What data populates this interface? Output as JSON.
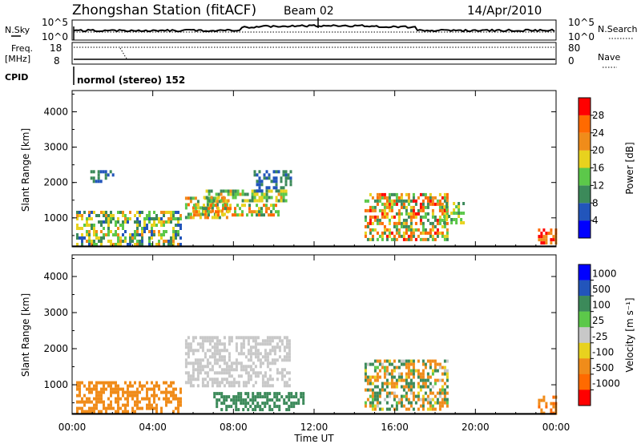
{
  "header": {
    "title": "Zhongshan Station (fitACF)",
    "beam": "Beam 02",
    "date": "14/Apr/2010"
  },
  "strip_nsky": {
    "label": "N.Sky",
    "right_label": "N.Search",
    "ticks_left": [
      "10^5",
      "10^0"
    ],
    "ticks_right": [
      "10^5",
      "10^0"
    ]
  },
  "strip_freq": {
    "label_line1": "Freq.",
    "label_line2": "[MHz]",
    "right_label": "Nave",
    "ticks_left": [
      "18",
      "8"
    ],
    "ticks_right": [
      "80",
      "0"
    ]
  },
  "strip_cpid": {
    "label": "CPID",
    "text": "normol (stereo) 152"
  },
  "panels": {
    "y_axis_label": "Slant Range [km]",
    "y_ticks": [
      "1000",
      "2000",
      "3000",
      "4000"
    ],
    "x_axis_label": "Time UT",
    "x_ticks": [
      "00:00",
      "04:00",
      "08:00",
      "12:00",
      "16:00",
      "20:00",
      "00:00"
    ]
  },
  "power_colorbar": {
    "label": "Power [dB]",
    "ticks": [
      "4",
      "8",
      "12",
      "16",
      "20",
      "24",
      "28"
    ],
    "colors": [
      "#0000ff",
      "#2255bb",
      "#3c8a5a",
      "#5cc84a",
      "#e8d21e",
      "#f08c1a",
      "#ff6a00",
      "#ff0000"
    ]
  },
  "velocity_colorbar": {
    "label": "Velocity [m s⁻¹]",
    "ticks": [
      "1000",
      "500",
      "100",
      "25",
      "-25",
      "-100",
      "-500",
      "-1000"
    ],
    "colors": [
      "#0000ff",
      "#2255bb",
      "#3c8a5a",
      "#5cc84a",
      "#c8c8c8",
      "#e8d21e",
      "#f08c1a",
      "#ff6a00",
      "#ff0000"
    ]
  },
  "chart_data": {
    "type": "heatmap",
    "title": "Zhongshan Station (fitACF)",
    "subtitle": "Beam 02  14/Apr/2010",
    "xlabel": "Time UT",
    "ylabel": "Slant Range [km]",
    "xlim": [
      0,
      24
    ],
    "ylim": [
      180,
      4600
    ],
    "x_ticks": [
      "00:00",
      "04:00",
      "08:00",
      "12:00",
      "16:00",
      "20:00",
      "00:00"
    ],
    "y_ticks": [
      1000,
      2000,
      3000,
      4000
    ],
    "panels": [
      {
        "quantity": "Power [dB]",
        "scale": [
          0,
          30
        ],
        "regions": [
          {
            "t0": 0.2,
            "t1": 5.4,
            "r0": 250,
            "r1": 1200,
            "v0": 5,
            "v1": 22
          },
          {
            "t0": 0.9,
            "t1": 2.0,
            "r0": 2050,
            "r1": 2350,
            "v0": 6,
            "v1": 10
          },
          {
            "t0": 5.6,
            "t1": 7.8,
            "r0": 1000,
            "r1": 1600,
            "v0": 8,
            "v1": 26
          },
          {
            "t0": 6.0,
            "t1": 10.2,
            "r0": 1100,
            "r1": 1400,
            "v0": 10,
            "v1": 28
          },
          {
            "t0": 6.5,
            "t1": 10.6,
            "r0": 1450,
            "r1": 1800,
            "v0": 8,
            "v1": 22
          },
          {
            "t0": 9.0,
            "t1": 10.8,
            "r0": 1800,
            "r1": 2350,
            "v0": 5,
            "v1": 12
          },
          {
            "t0": 14.5,
            "t1": 18.6,
            "r0": 350,
            "r1": 1700,
            "v0": 8,
            "v1": 30
          },
          {
            "t0": 18.4,
            "t1": 19.4,
            "r0": 850,
            "r1": 1450,
            "v0": 8,
            "v1": 20
          },
          {
            "t0": 23.1,
            "t1": 24.0,
            "r0": 250,
            "r1": 700,
            "v0": 20,
            "v1": 30
          }
        ]
      },
      {
        "quantity": "Velocity [m s-1]",
        "scale": [
          -1000,
          1000
        ],
        "regions": [
          {
            "t0": 0.2,
            "t1": 5.4,
            "r0": 250,
            "r1": 1100,
            "v0": -500,
            "v1": -100
          },
          {
            "t0": 5.6,
            "t1": 10.8,
            "r0": 1000,
            "r1": 2350,
            "v0": -25,
            "v1": 25
          },
          {
            "t0": 7.0,
            "t1": 11.5,
            "r0": 350,
            "r1": 800,
            "v0": 100,
            "v1": 500
          },
          {
            "t0": 14.5,
            "t1": 18.6,
            "r0": 350,
            "r1": 1700,
            "v0": -500,
            "v1": 500
          },
          {
            "t0": 23.1,
            "t1": 24.0,
            "r0": 250,
            "r1": 700,
            "v0": -600,
            "v1": -300
          }
        ]
      }
    ]
  }
}
